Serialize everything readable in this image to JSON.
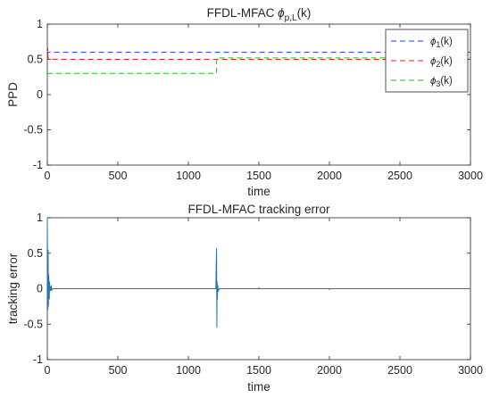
{
  "chart_data": [
    {
      "type": "line",
      "title": {
        "main": "FFDL-MFAC ",
        "symbol": "ϕ",
        "sub": "p,L",
        "suffix": "(k)"
      },
      "xlabel": "time",
      "ylabel": "PPD",
      "xlim": [
        0,
        3000
      ],
      "ylim": [
        -1,
        1
      ],
      "xticks": [
        0,
        500,
        1000,
        1500,
        2000,
        2500,
        3000
      ],
      "yticks": [
        -1,
        -0.5,
        0,
        0.5,
        1
      ],
      "ytick_labels": [
        "-1",
        "-0.5",
        "0",
        "0.5",
        "1"
      ],
      "grid": false,
      "legend_position": "top-right",
      "series": [
        {
          "name": {
            "symbol": "ϕ",
            "sub": "1",
            "suffix": "(k)"
          },
          "color": "#1f3fd6",
          "dash": "dashed",
          "x": [
            0,
            3,
            6,
            3000
          ],
          "y": [
            0.6,
            0.58,
            0.6,
            0.6
          ]
        },
        {
          "name": {
            "symbol": "ϕ",
            "sub": "2",
            "suffix": "(k)"
          },
          "color": "#e0201b",
          "dash": "dashed",
          "x": [
            0,
            3,
            6,
            3000
          ],
          "y": [
            0.5,
            0.66,
            0.5,
            0.5
          ]
        },
        {
          "name": {
            "symbol": "ϕ",
            "sub": "3",
            "suffix": "(k)"
          },
          "color": "#19c21a",
          "dash": "dashed",
          "x": [
            0,
            1200,
            1200,
            3000
          ],
          "y": [
            0.3,
            0.3,
            0.52,
            0.52
          ]
        }
      ]
    },
    {
      "type": "line",
      "title": {
        "main": "FFDL-MFAC tracking error"
      },
      "xlabel": "time",
      "ylabel": "tracking error",
      "xlim": [
        0,
        3000
      ],
      "ylim": [
        -1,
        1
      ],
      "xticks": [
        0,
        500,
        1000,
        1500,
        2000,
        2500,
        3000
      ],
      "yticks": [
        -1,
        -0.5,
        0,
        0.5,
        1
      ],
      "ytick_labels": [
        "-1",
        "-0.5",
        "0",
        "0.5",
        "1"
      ],
      "grid": false,
      "series": [
        {
          "color": "#1f77b4",
          "dash": "solid",
          "x": [
            0,
            2,
            4,
            6,
            8,
            10,
            12,
            14,
            16,
            18,
            20,
            24,
            28,
            32,
            40,
            60,
            1195,
            1198,
            1200,
            1202,
            1204,
            1206,
            1208,
            1212,
            1220,
            1499,
            1500,
            1501,
            1999,
            2000,
            2001,
            3000
          ],
          "y": [
            1.0,
            0.3,
            -0.3,
            0.55,
            -0.25,
            0.2,
            0.08,
            -0.15,
            0.1,
            -0.04,
            0.03,
            -0.03,
            0.05,
            -0.02,
            0,
            0,
            0,
            0.4,
            0.57,
            -0.55,
            0.1,
            -0.15,
            0.05,
            -0.03,
            0,
            0,
            0.02,
            0,
            0,
            -0.02,
            0,
            0
          ]
        }
      ]
    }
  ]
}
